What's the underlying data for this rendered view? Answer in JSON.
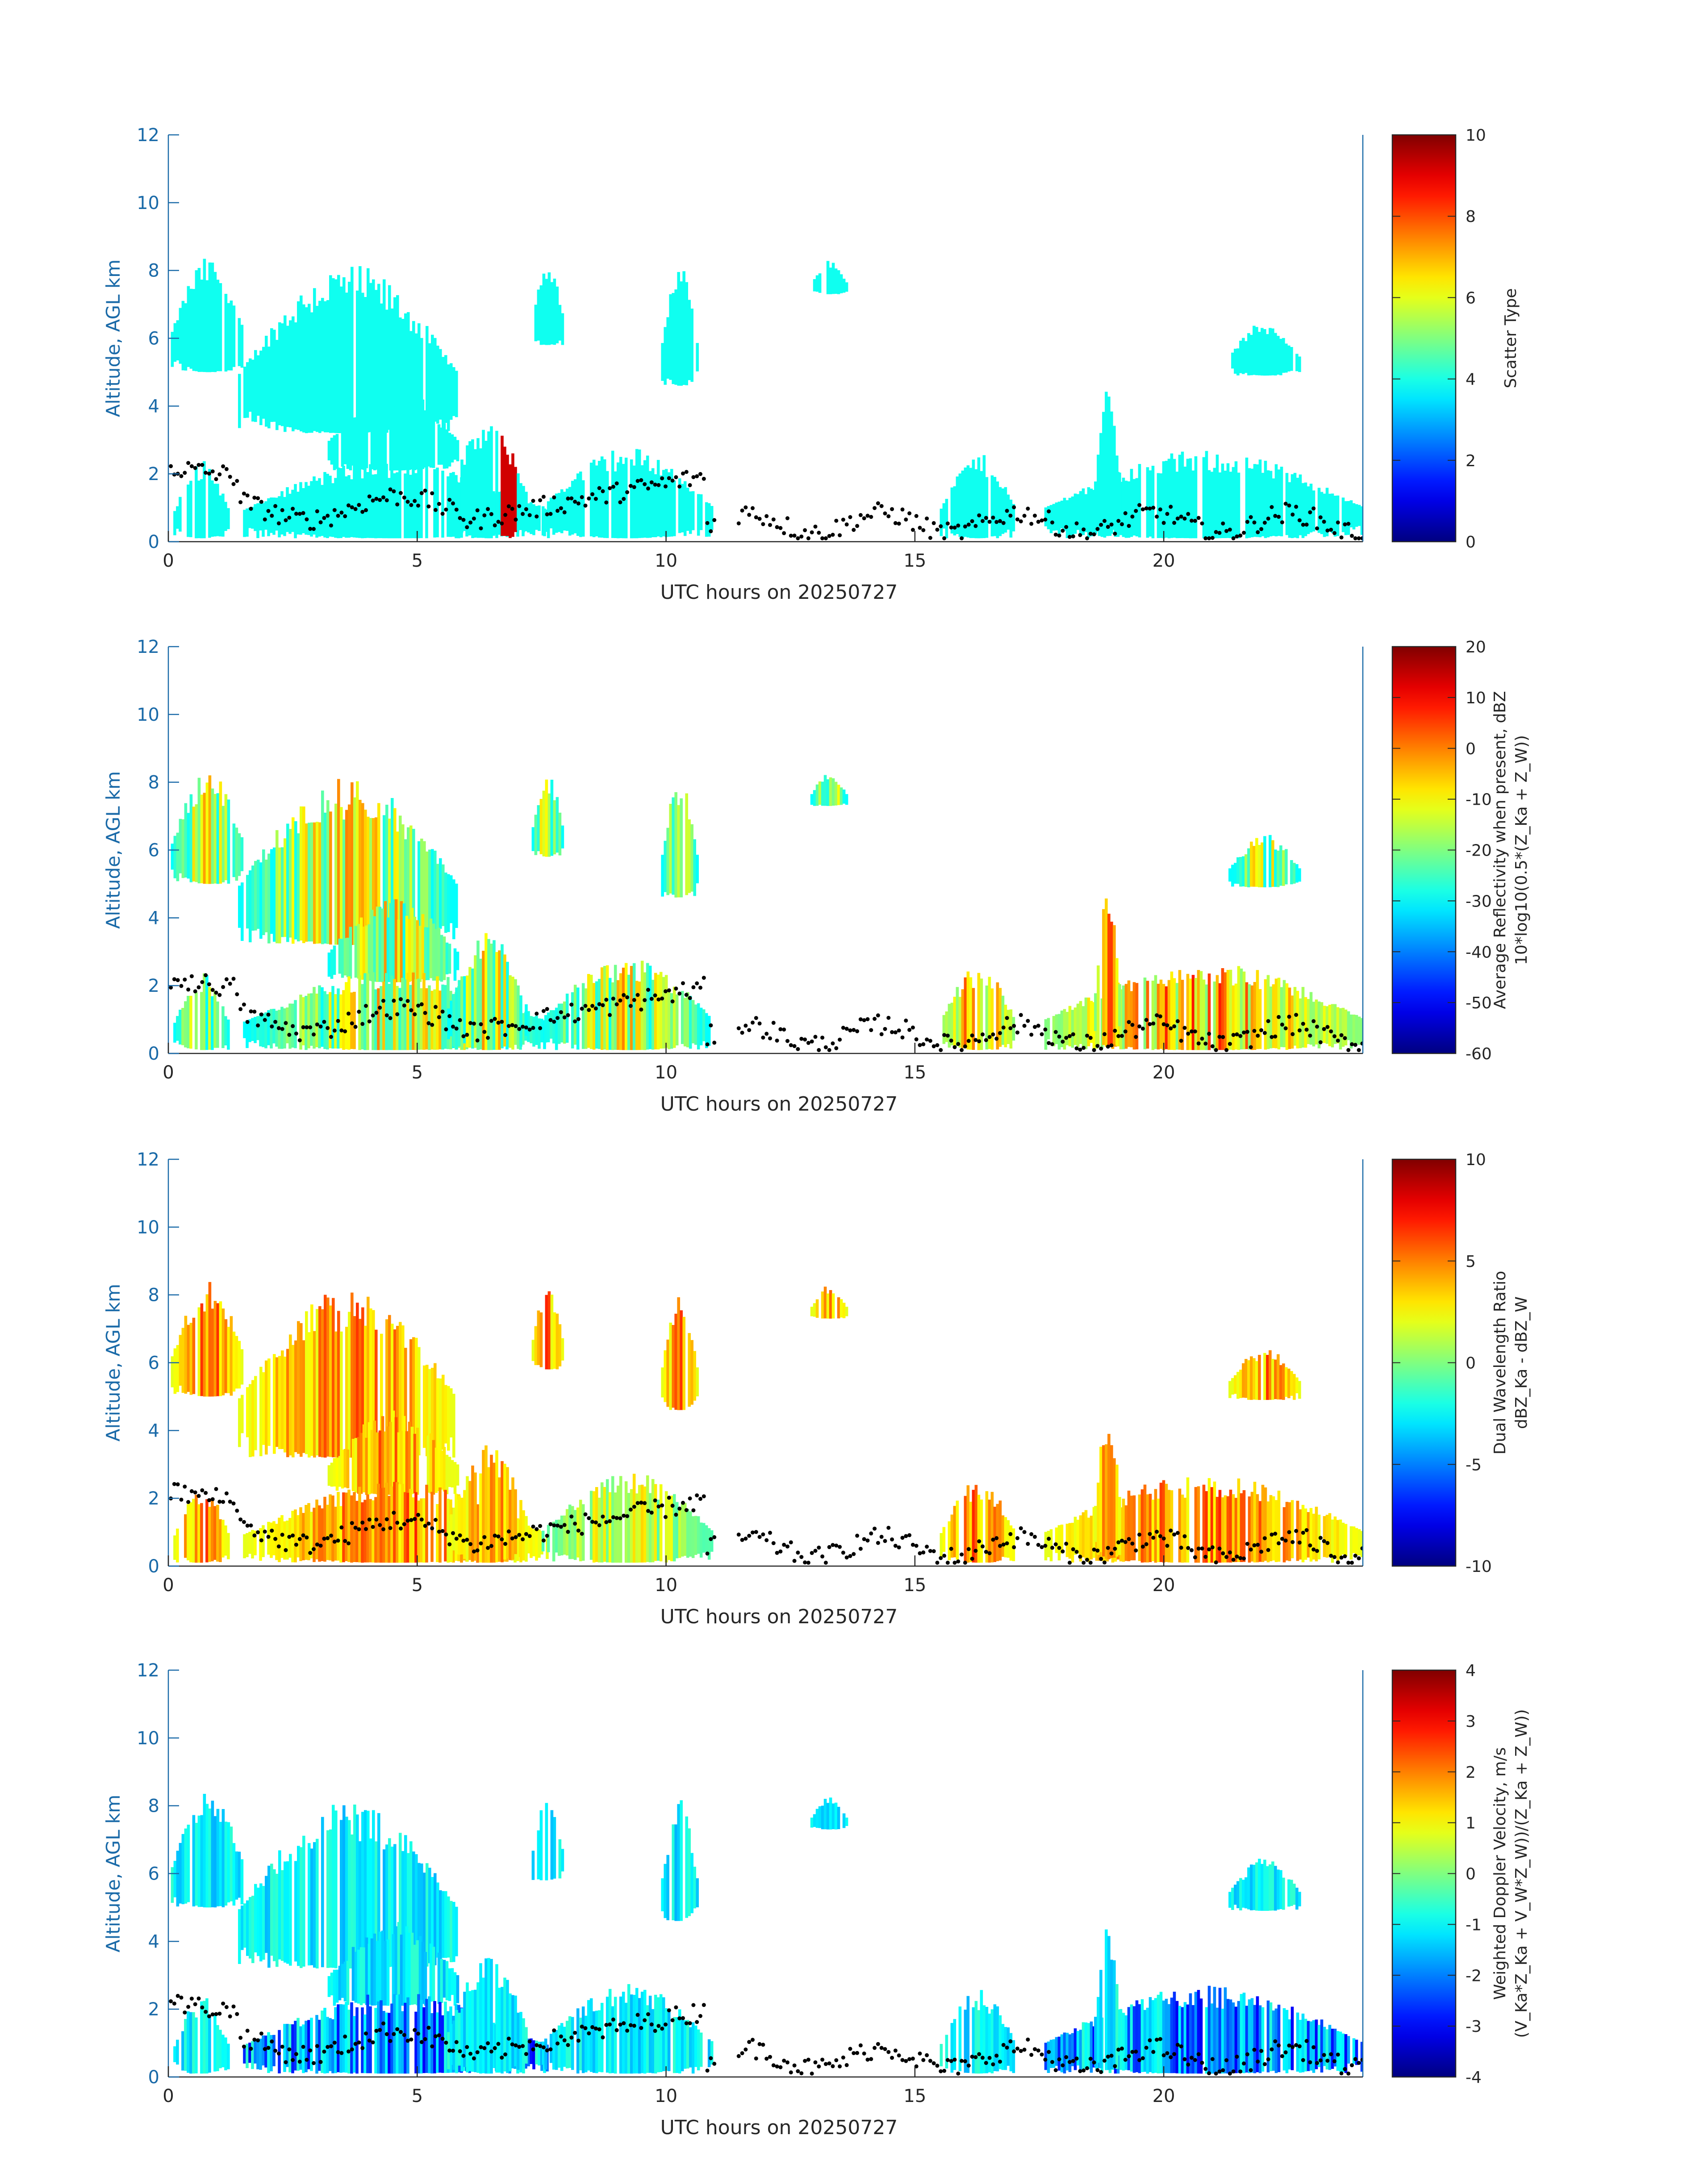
{
  "chart_data": [
    {
      "type": "heatmap",
      "panel_index": 0,
      "xlabel": "UTC hours on 20250727",
      "ylabel": "Altitude, AGL km",
      "xlim": [
        0,
        24
      ],
      "ylim": [
        0,
        12
      ],
      "x_ticks": [
        0,
        5,
        10,
        15,
        20
      ],
      "y_ticks": [
        0,
        2,
        4,
        6,
        8,
        10,
        12
      ],
      "colorbar": {
        "label_lines": [
          "Scatter Type"
        ],
        "range": [
          0,
          10
        ],
        "ticks": [
          0,
          2,
          4,
          6,
          8,
          10
        ],
        "colormap": "jet"
      },
      "field_value": 3.9,
      "field_note": "mostly uniform cyan (~4); red (~9) band near 6.7-7.0 h below 3 km",
      "overlay": "cloud-base detections (black dots)"
    },
    {
      "type": "heatmap",
      "panel_index": 1,
      "xlabel": "UTC hours on 20250727",
      "ylabel": "Altitude, AGL km",
      "xlim": [
        0,
        24
      ],
      "ylim": [
        0,
        12
      ],
      "x_ticks": [
        0,
        5,
        10,
        15,
        20
      ],
      "y_ticks": [
        0,
        2,
        4,
        6,
        8,
        10,
        12
      ],
      "colorbar": {
        "label_lines": [
          "Average Reflectivity when present, dBZ",
          "10*log10(0.5*(Z_Ka + Z_W))"
        ],
        "range": [
          -60,
          20
        ],
        "ticks": [
          -60,
          -50,
          -40,
          -30,
          -20,
          -10,
          0,
          10,
          20
        ],
        "colormap": "jet"
      },
      "overlay": "cloud-base detections (black dots)"
    },
    {
      "type": "heatmap",
      "panel_index": 2,
      "xlabel": "UTC hours on 20250727",
      "ylabel": "Altitude, AGL km",
      "xlim": [
        0,
        24
      ],
      "ylim": [
        0,
        12
      ],
      "x_ticks": [
        0,
        5,
        10,
        15,
        20
      ],
      "y_ticks": [
        0,
        2,
        4,
        6,
        8,
        10,
        12
      ],
      "colorbar": {
        "label_lines": [
          "Dual Wavelength Ratio",
          "dBZ_Ka - dBZ_W"
        ],
        "range": [
          -10,
          10
        ],
        "ticks": [
          -10,
          -5,
          0,
          5,
          10
        ],
        "colormap": "jet"
      },
      "overlay": "cloud-base detections (black dots)"
    },
    {
      "type": "heatmap",
      "panel_index": 3,
      "xlabel": "UTC hours on 20250727",
      "ylabel": "Altitude, AGL km",
      "xlim": [
        0,
        24
      ],
      "ylim": [
        0,
        12
      ],
      "x_ticks": [
        0,
        5,
        10,
        15,
        20
      ],
      "y_ticks": [
        0,
        2,
        4,
        6,
        8,
        10,
        12
      ],
      "colorbar": {
        "label_lines": [
          "Weighted Doppler Velocity, m/s",
          "(V_Ka*Z_Ka + V_W*Z_W))/(Z_Ka + Z_W))"
        ],
        "range": [
          -4,
          4
        ],
        "ticks": [
          -4,
          -3,
          -2,
          -1,
          0,
          1,
          2,
          3,
          4
        ],
        "colormap": "jet"
      },
      "overlay": "cloud-base detections (black dots)"
    }
  ],
  "echo_regions": [
    {
      "t0": 0.05,
      "t1": 1.5,
      "z0": 5.0,
      "z1": 8.4
    },
    {
      "t0": 1.4,
      "t1": 5.8,
      "z0": 3.2,
      "z1": 8.2
    },
    {
      "t0": 3.2,
      "t1": 5.8,
      "z0": 2.1,
      "z1": 4.6
    },
    {
      "t0": 0.1,
      "t1": 1.2,
      "z0": 0.1,
      "z1": 2.4
    },
    {
      "t0": 1.5,
      "t1": 7.6,
      "z0": 0.1,
      "z1": 2.5
    },
    {
      "t0": 5.6,
      "t1": 7.2,
      "z0": 0.1,
      "z1": 3.6
    },
    {
      "t0": 7.5,
      "t1": 10.9,
      "z0": 0.1,
      "z1": 2.8
    },
    {
      "t0": 7.3,
      "t1": 7.9,
      "z0": 5.8,
      "z1": 8.3
    },
    {
      "t0": 9.9,
      "t1": 10.6,
      "z0": 4.6,
      "z1": 8.2
    },
    {
      "t0": 12.9,
      "t1": 13.6,
      "z0": 7.3,
      "z1": 8.3
    },
    {
      "t0": 21.3,
      "t1": 22.7,
      "z0": 4.9,
      "z1": 6.5
    },
    {
      "t0": 15.5,
      "t1": 17.0,
      "z0": 0.1,
      "z1": 2.6
    },
    {
      "t0": 17.6,
      "t1": 24.0,
      "z0": 0.1,
      "z1": 2.7
    },
    {
      "t0": 18.6,
      "t1": 19.1,
      "z0": 0.2,
      "z1": 4.7
    }
  ]
}
